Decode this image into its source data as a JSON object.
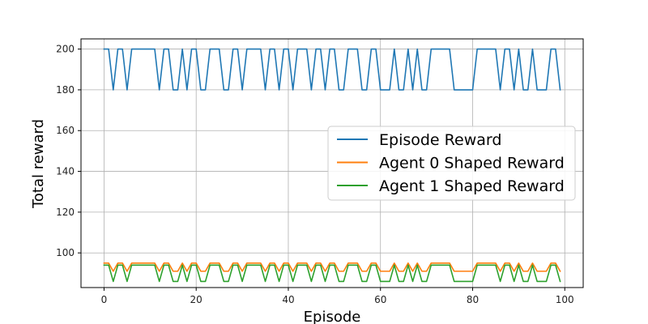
{
  "chart_data": {
    "type": "line",
    "title": "",
    "xlabel": "Episode",
    "ylabel": "Total reward",
    "xlim": [
      -5,
      104
    ],
    "ylim": [
      83,
      205
    ],
    "xticks": [
      0,
      20,
      40,
      60,
      80,
      100
    ],
    "yticks": [
      100,
      120,
      140,
      160,
      180,
      200
    ],
    "grid": true,
    "legend_position": "center-right",
    "x": [
      0,
      1,
      2,
      3,
      4,
      5,
      6,
      7,
      8,
      9,
      10,
      11,
      12,
      13,
      14,
      15,
      16,
      17,
      18,
      19,
      20,
      21,
      22,
      23,
      24,
      25,
      26,
      27,
      28,
      29,
      30,
      31,
      32,
      33,
      34,
      35,
      36,
      37,
      38,
      39,
      40,
      41,
      42,
      43,
      44,
      45,
      46,
      47,
      48,
      49,
      50,
      51,
      52,
      53,
      54,
      55,
      56,
      57,
      58,
      59,
      60,
      61,
      62,
      63,
      64,
      65,
      66,
      67,
      68,
      69,
      70,
      71,
      72,
      73,
      74,
      75,
      76,
      77,
      78,
      79,
      80,
      81,
      82,
      83,
      84,
      85,
      86,
      87,
      88,
      89,
      90,
      91,
      92,
      93,
      94,
      95,
      96,
      97,
      98,
      99
    ],
    "series": [
      {
        "name": "Episode Reward",
        "color": "#1f77b4",
        "values": [
          200,
          200,
          180,
          200,
          200,
          180,
          200,
          200,
          200,
          200,
          200,
          200,
          180,
          200,
          200,
          180,
          180,
          200,
          180,
          200,
          200,
          180,
          180,
          200,
          200,
          200,
          180,
          180,
          200,
          200,
          180,
          200,
          200,
          200,
          200,
          180,
          200,
          200,
          180,
          200,
          200,
          180,
          200,
          200,
          200,
          180,
          200,
          200,
          180,
          200,
          200,
          180,
          180,
          200,
          200,
          200,
          180,
          180,
          200,
          200,
          180,
          180,
          180,
          200,
          180,
          180,
          200,
          180,
          200,
          180,
          180,
          200,
          200,
          200,
          200,
          200,
          180,
          180,
          180,
          180,
          180,
          200,
          200,
          200,
          200,
          200,
          180,
          200,
          200,
          180,
          200,
          180,
          180,
          200,
          180,
          180,
          180,
          200,
          200,
          180
        ]
      },
      {
        "name": "Agent 0 Shaped Reward",
        "color": "#ff7f0e",
        "values": [
          95,
          95,
          91,
          95,
          95,
          91,
          95,
          95,
          95,
          95,
          95,
          95,
          91,
          95,
          95,
          91,
          91,
          95,
          91,
          95,
          95,
          91,
          91,
          95,
          95,
          95,
          91,
          91,
          95,
          95,
          91,
          95,
          95,
          95,
          95,
          91,
          95,
          95,
          91,
          95,
          95,
          91,
          95,
          95,
          95,
          91,
          95,
          95,
          91,
          95,
          95,
          91,
          91,
          95,
          95,
          95,
          91,
          91,
          95,
          95,
          91,
          91,
          91,
          95,
          91,
          91,
          95,
          91,
          95,
          91,
          91,
          95,
          95,
          95,
          95,
          95,
          91,
          91,
          91,
          91,
          91,
          95,
          95,
          95,
          95,
          95,
          91,
          95,
          95,
          91,
          95,
          91,
          91,
          95,
          91,
          91,
          91,
          95,
          95,
          91
        ]
      },
      {
        "name": "Agent 1 Shaped Reward",
        "color": "#2ca02c",
        "values": [
          94,
          94,
          86,
          94,
          94,
          86,
          94,
          94,
          94,
          94,
          94,
          94,
          86,
          94,
          94,
          86,
          86,
          94,
          86,
          94,
          94,
          86,
          86,
          94,
          94,
          94,
          86,
          86,
          94,
          94,
          86,
          94,
          94,
          94,
          94,
          86,
          94,
          94,
          86,
          94,
          94,
          86,
          94,
          94,
          94,
          86,
          94,
          94,
          86,
          94,
          94,
          86,
          86,
          94,
          94,
          94,
          86,
          86,
          94,
          94,
          86,
          86,
          86,
          94,
          86,
          86,
          94,
          86,
          94,
          86,
          86,
          94,
          94,
          94,
          94,
          94,
          86,
          86,
          86,
          86,
          86,
          94,
          94,
          94,
          94,
          94,
          86,
          94,
          94,
          86,
          94,
          86,
          86,
          94,
          86,
          86,
          86,
          94,
          94,
          86
        ]
      }
    ]
  }
}
